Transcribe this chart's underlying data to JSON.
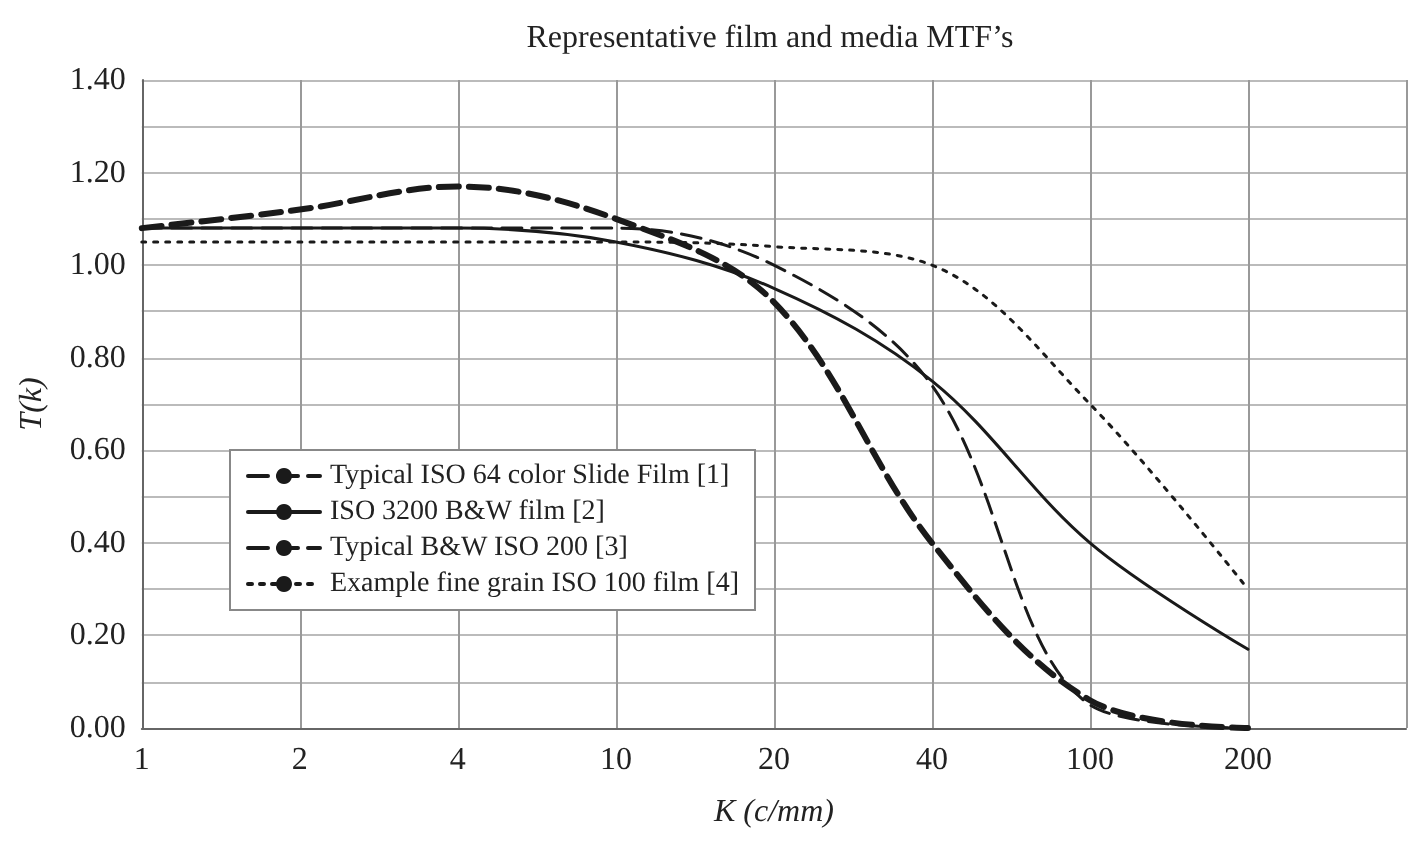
{
  "chart_data": {
    "type": "line",
    "title": "Representative film and media MTF’s",
    "xlabel": "K (c/mm)",
    "ylabel": "T(k)",
    "categories": [
      "1",
      "2",
      "4",
      "10",
      "20",
      "40",
      "100",
      "200",
      null
    ],
    "series": [
      {
        "name": "Typical ISO 64 color Slide Film [1]",
        "color": "#1a1a1a",
        "line_style": "dashed",
        "values": [
          1.08,
          1.12,
          1.17,
          1.1,
          0.92,
          0.4,
          0.06,
          0.0,
          null
        ]
      },
      {
        "name": "ISO 3200 B&W film [2]",
        "color": "#1a1a1a",
        "line_style": "solid",
        "values": [
          1.08,
          1.08,
          1.08,
          1.05,
          0.95,
          0.75,
          0.4,
          0.17,
          null
        ]
      },
      {
        "name": "Typical B&W ISO 200 [3]",
        "color": "#1a1a1a",
        "line_style": "dashed",
        "values": [
          1.08,
          1.08,
          1.08,
          1.08,
          1.0,
          0.74,
          0.05,
          0.0,
          null
        ]
      },
      {
        "name": "Example fine grain ISO 100 film [4]",
        "color": "#1a1a1a",
        "line_style": "dotted",
        "values": [
          1.05,
          1.05,
          1.05,
          1.05,
          1.04,
          1.0,
          0.7,
          0.3,
          null
        ]
      }
    ],
    "ylim": [
      0,
      1.4
    ],
    "yticks": [
      {
        "value": 0,
        "label": "0.00"
      },
      {
        "value": 0.1,
        "label": null
      },
      {
        "value": 0.2,
        "label": "0.20"
      },
      {
        "value": 0.3,
        "label": null
      },
      {
        "value": 0.4,
        "label": "0.40"
      },
      {
        "value": 0.5,
        "label": null
      },
      {
        "value": 0.6,
        "label": "0.60"
      },
      {
        "value": 0.7,
        "label": null
      },
      {
        "value": 0.8,
        "label": "0.80"
      },
      {
        "value": 0.9,
        "label": null
      },
      {
        "value": 1.0,
        "label": "1.00"
      },
      {
        "value": 1.1,
        "label": null
      },
      {
        "value": 1.2,
        "label": "1.20"
      },
      {
        "value": 1.3,
        "label": null
      },
      {
        "value": 1.4,
        "label": "1.40"
      }
    ],
    "grid": true,
    "legend": "bottom left",
    "marker": "none"
  }
}
